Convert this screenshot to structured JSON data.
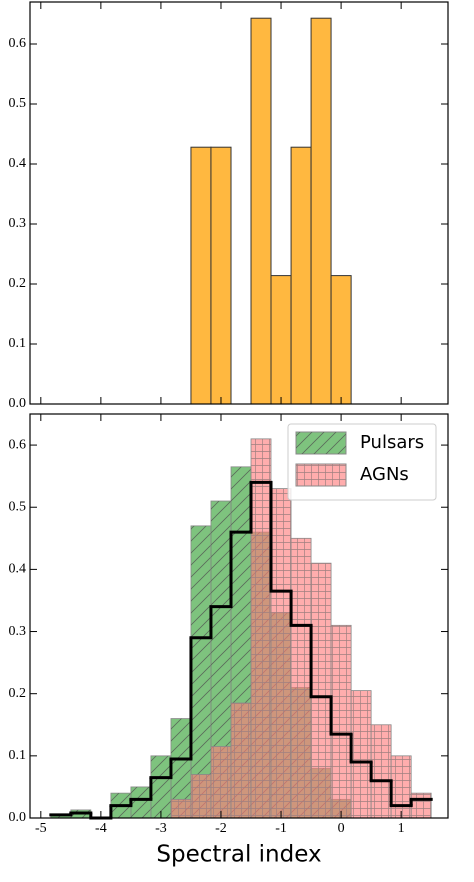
{
  "chart_data": [
    {
      "type": "histogram",
      "bins": [
        -2.5,
        -2.167,
        -1.833,
        -1.5,
        -1.167,
        -0.833,
        -0.5,
        -0.167,
        0.167
      ],
      "values": [
        0.428,
        0.428,
        0,
        0.643,
        0.214,
        0.428,
        0.643,
        0.214
      ],
      "color": "#ffb840",
      "xlim": [
        -5.18,
        1.78
      ],
      "xticks": [
        -5,
        -4,
        -3,
        -2,
        -1,
        0,
        1
      ],
      "xtick_labels": false,
      "ylim": [
        0,
        0.67
      ],
      "yticks": [
        {
          "value": 0,
          "label": "0.0"
        },
        0.1,
        0.2,
        0.3,
        0.4,
        0.5,
        0.6
      ]
    },
    {
      "type": "histogram",
      "xlabel": "Spectral index",
      "bins": [
        -4.833,
        -4.5,
        -4.167,
        -3.833,
        -3.5,
        -3.167,
        -2.833,
        -2.5,
        -2.167,
        -1.833,
        -1.5,
        -1.167,
        -0.833,
        -0.5,
        -0.167,
        0.167,
        0.5,
        0.833,
        1.167,
        1.5
      ],
      "series": [
        {
          "name": "Pulsars",
          "color": "#2f9e2f",
          "hatch": "/",
          "values": [
            0.005,
            0.013,
            0,
            0.04,
            0.05,
            0.1,
            0.16,
            0.47,
            0.51,
            0.565,
            0.46,
            0.33,
            0.21,
            0.08,
            0.03,
            0,
            0,
            0,
            0
          ]
        },
        {
          "name": "AGNs",
          "color": "#ff7a7a",
          "hatch": "+",
          "values": [
            0,
            0,
            0,
            0,
            0,
            0,
            0.03,
            0.07,
            0.115,
            0.185,
            0.61,
            0.53,
            0.45,
            0.41,
            0.31,
            0.205,
            0.15,
            0.1,
            0.04
          ]
        },
        {
          "color": "#000000",
          "style": "step",
          "values": [
            0.005,
            0.008,
            0,
            0.02,
            0.03,
            0.065,
            0.095,
            0.29,
            0.34,
            0.46,
            0.54,
            0.365,
            0.31,
            0.195,
            0.135,
            0.09,
            0.06,
            0.02,
            0.03
          ]
        }
      ],
      "legend": "upper right",
      "xlim": [
        -5.18,
        1.78
      ],
      "xticks": [
        -5,
        -4,
        -3,
        -2,
        -1,
        0,
        1
      ],
      "xtick_labels": true,
      "ylim": [
        0,
        0.65
      ],
      "yticks": [
        {
          "value": 0,
          "label": "0.0"
        },
        0.1,
        0.2,
        0.3,
        0.4,
        0.5,
        0.6
      ]
    }
  ]
}
